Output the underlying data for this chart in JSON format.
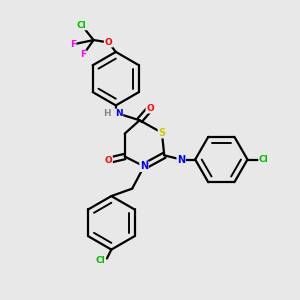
{
  "background_color": "#e8e8e8",
  "atom_colors": {
    "C": "#000000",
    "N": "#0000ff",
    "O": "#ff0000",
    "S": "#cccc00",
    "Cl": "#00bb00",
    "F": "#ff00ff",
    "H": "#888888"
  },
  "bond_color": "#000000",
  "bond_width": 1.6,
  "figsize": [
    3.0,
    3.0
  ],
  "dpi": 100
}
